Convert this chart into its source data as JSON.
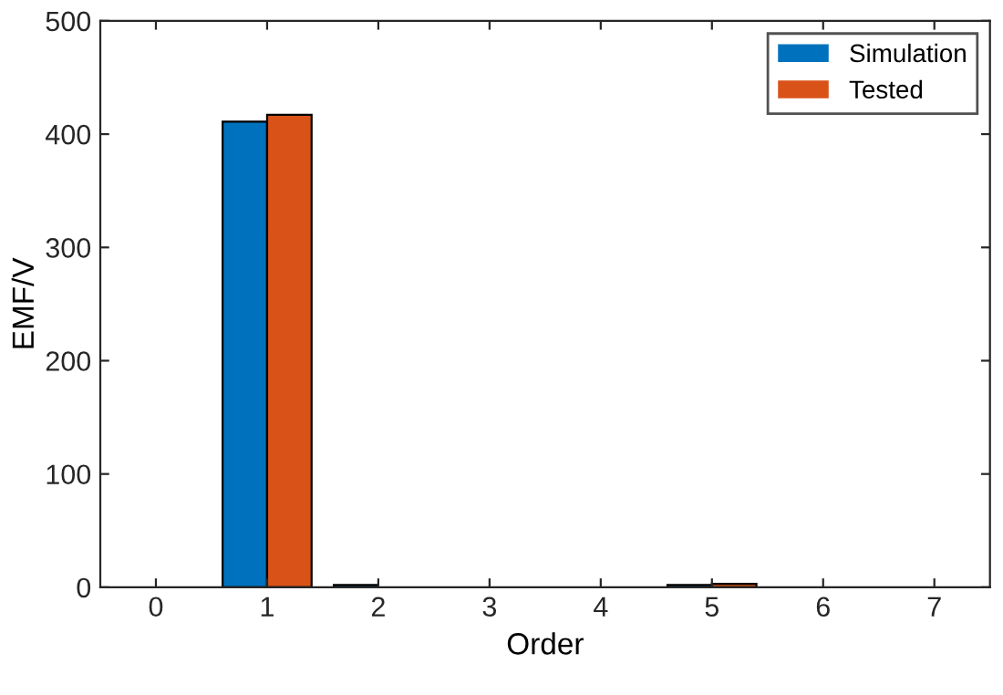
{
  "chart_data": {
    "type": "bar",
    "xlabel": "Order",
    "ylabel": "EMF/V",
    "categories": [
      "0",
      "1",
      "2",
      "3",
      "4",
      "5",
      "6",
      "7"
    ],
    "series": [
      {
        "name": "Simulation",
        "color": "#0072bd",
        "values": [
          0,
          411,
          2,
          0,
          0,
          2,
          0,
          0
        ]
      },
      {
        "name": "Tested",
        "color": "#d95319",
        "values": [
          0,
          417,
          null,
          0,
          0,
          3,
          0,
          0
        ]
      }
    ],
    "ylim": [
      0,
      500
    ],
    "yticks": [
      0,
      100,
      200,
      300,
      400,
      500
    ],
    "grid": false,
    "legend": "top right"
  }
}
